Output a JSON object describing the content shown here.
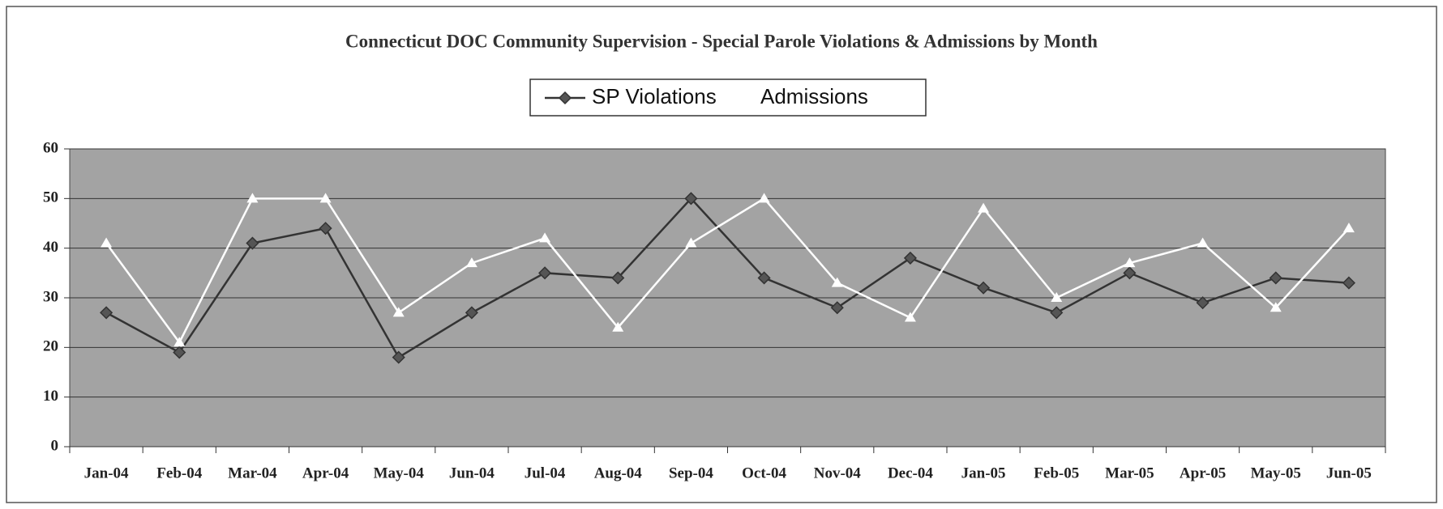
{
  "chart_data": {
    "type": "line",
    "title": "Connecticut DOC Community Supervision -  Special Parole Violations & Admissions by Month",
    "categories": [
      "Jan-04",
      "Feb-04",
      "Mar-04",
      "Apr-04",
      "May-04",
      "Jun-04",
      "Jul-04",
      "Aug-04",
      "Sep-04",
      "Oct-04",
      "Nov-04",
      "Dec-04",
      "Jan-05",
      "Feb-05",
      "Mar-05",
      "Apr-05",
      "May-05",
      "Jun-05"
    ],
    "series": [
      {
        "name": "SP Violations",
        "color": "#333333",
        "marker": "diamond",
        "values": [
          27,
          19,
          41,
          44,
          18,
          27,
          35,
          34,
          50,
          34,
          28,
          38,
          32,
          27,
          35,
          29,
          34,
          33
        ]
      },
      {
        "name": "Admissions",
        "color": "#ffffff",
        "marker": "triangle",
        "values": [
          41,
          21,
          50,
          50,
          27,
          37,
          42,
          24,
          41,
          50,
          33,
          26,
          48,
          30,
          37,
          41,
          28,
          44
        ]
      }
    ],
    "ylim": [
      0,
      60
    ],
    "yticks": [
      0,
      10,
      20,
      30,
      40,
      50,
      60
    ],
    "grid": true,
    "legend": "top"
  }
}
